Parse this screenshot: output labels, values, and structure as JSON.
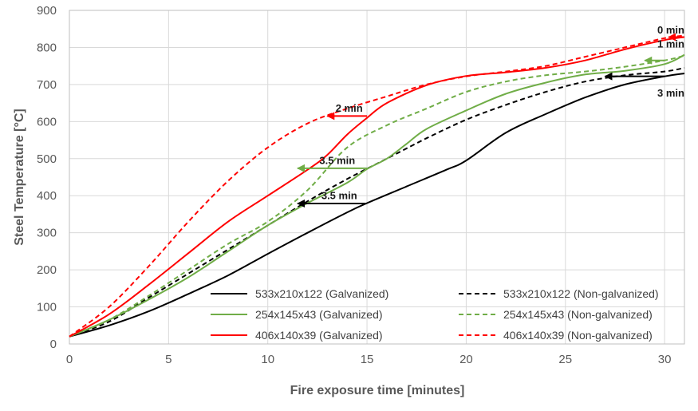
{
  "chart_data": {
    "type": "line",
    "title": "",
    "xlabel": "Fire exposure time [minutes]",
    "ylabel": "Steel Temperature [°C]",
    "xlim": [
      0,
      31
    ],
    "ylim": [
      0,
      900
    ],
    "x_ticks": [
      0,
      5,
      10,
      15,
      20,
      25,
      30
    ],
    "y_ticks": [
      0,
      100,
      200,
      300,
      400,
      500,
      600,
      700,
      800,
      900
    ],
    "grid": true,
    "legend_position": "bottom-right, inside plot, two columns",
    "series": [
      {
        "name": "533x210x122 (Galvanized)",
        "color": "#000000",
        "dash": "solid",
        "points": [
          [
            0,
            20
          ],
          [
            2,
            50
          ],
          [
            4,
            88
          ],
          [
            6,
            135
          ],
          [
            8,
            185
          ],
          [
            10,
            243
          ],
          [
            12,
            300
          ],
          [
            14,
            355
          ],
          [
            15,
            380
          ],
          [
            17,
            425
          ],
          [
            19,
            470
          ],
          [
            20,
            495
          ],
          [
            22,
            570
          ],
          [
            24,
            620
          ],
          [
            26,
            665
          ],
          [
            28,
            700
          ],
          [
            30,
            722
          ],
          [
            31,
            730
          ]
        ]
      },
      {
        "name": "533x210x122 (Non-galvanized)",
        "color": "#000000",
        "dash": "dashed",
        "points": [
          [
            0,
            20
          ],
          [
            2,
            60
          ],
          [
            4,
            125
          ],
          [
            6,
            190
          ],
          [
            8,
            255
          ],
          [
            10,
            320
          ],
          [
            12,
            385
          ],
          [
            14,
            445
          ],
          [
            16,
            500
          ],
          [
            18,
            555
          ],
          [
            20,
            605
          ],
          [
            22,
            645
          ],
          [
            24,
            680
          ],
          [
            26,
            708
          ],
          [
            28,
            725
          ],
          [
            30,
            735
          ],
          [
            31,
            745
          ]
        ]
      },
      {
        "name": "254x145x43 (Galvanized)",
        "color": "#70AD47",
        "dash": "solid",
        "points": [
          [
            0,
            20
          ],
          [
            2,
            65
          ],
          [
            4,
            120
          ],
          [
            6,
            180
          ],
          [
            8,
            250
          ],
          [
            10,
            320
          ],
          [
            12,
            380
          ],
          [
            14,
            435
          ],
          [
            15,
            472
          ],
          [
            16,
            500
          ],
          [
            17,
            540
          ],
          [
            18,
            580
          ],
          [
            20,
            630
          ],
          [
            22,
            675
          ],
          [
            24,
            705
          ],
          [
            26,
            727
          ],
          [
            28,
            737
          ],
          [
            30,
            755
          ],
          [
            31,
            780
          ]
        ]
      },
      {
        "name": "254x145x43 (Non-galvanized)",
        "color": "#70AD47",
        "dash": "dashed",
        "points": [
          [
            0,
            20
          ],
          [
            2,
            65
          ],
          [
            4,
            130
          ],
          [
            6,
            200
          ],
          [
            8,
            270
          ],
          [
            10,
            330
          ],
          [
            12,
            415
          ],
          [
            14,
            530
          ],
          [
            16,
            590
          ],
          [
            18,
            635
          ],
          [
            20,
            680
          ],
          [
            22,
            708
          ],
          [
            24,
            725
          ],
          [
            26,
            735
          ],
          [
            28,
            748
          ],
          [
            30,
            765
          ],
          [
            31,
            778
          ]
        ]
      },
      {
        "name": "406x140x39 (Galvanized)",
        "color": "#FF0000",
        "dash": "solid",
        "points": [
          [
            0,
            20
          ],
          [
            2,
            80
          ],
          [
            4,
            160
          ],
          [
            6,
            245
          ],
          [
            8,
            330
          ],
          [
            10,
            400
          ],
          [
            12,
            470
          ],
          [
            13,
            510
          ],
          [
            14,
            565
          ],
          [
            15,
            610
          ],
          [
            16,
            650
          ],
          [
            18,
            698
          ],
          [
            20,
            723
          ],
          [
            22,
            733
          ],
          [
            24,
            745
          ],
          [
            26,
            765
          ],
          [
            28,
            795
          ],
          [
            30,
            820
          ],
          [
            31,
            828
          ]
        ]
      },
      {
        "name": "406x140x39 (Non-galvanized)",
        "color": "#FF0000",
        "dash": "dashed",
        "points": [
          [
            0,
            20
          ],
          [
            2,
            100
          ],
          [
            4,
            210
          ],
          [
            6,
            330
          ],
          [
            8,
            440
          ],
          [
            10,
            530
          ],
          [
            12,
            595
          ],
          [
            14,
            635
          ],
          [
            16,
            668
          ],
          [
            18,
            700
          ],
          [
            20,
            722
          ],
          [
            22,
            735
          ],
          [
            24,
            750
          ],
          [
            26,
            775
          ],
          [
            28,
            800
          ],
          [
            30,
            825
          ],
          [
            31,
            832
          ]
        ]
      }
    ],
    "annotations": [
      {
        "label": "0 min",
        "color": "#FF0000",
        "from": [
          31,
          828
        ],
        "to": [
          30.2,
          828
        ],
        "text_at": [
          31,
          838
        ],
        "anchor": "end"
      },
      {
        "label": "1 min",
        "color": "#70AD47",
        "from": [
          30,
          765
        ],
        "to": [
          29,
          765
        ],
        "text_at": [
          31,
          800
        ],
        "anchor": "end"
      },
      {
        "label": "3 min",
        "color": "#000000",
        "from": [
          30,
          722
        ],
        "to": [
          27,
          722
        ],
        "text_at": [
          31,
          668
        ],
        "anchor": "end"
      },
      {
        "label": "2 min",
        "color": "#FF0000",
        "from": [
          15,
          615
        ],
        "to": [
          13,
          615
        ],
        "text_at": [
          14.1,
          627
        ],
        "anchor": "middle"
      },
      {
        "label": "3.5 min",
        "color": "#70AD47",
        "from": [
          15,
          474
        ],
        "to": [
          11.5,
          474
        ],
        "text_at": [
          13.5,
          486
        ],
        "anchor": "middle"
      },
      {
        "label": "3.5 min",
        "color": "#000000",
        "from": [
          15,
          379
        ],
        "to": [
          11.5,
          379
        ],
        "text_at": [
          13.6,
          391
        ],
        "anchor": "middle"
      }
    ]
  }
}
